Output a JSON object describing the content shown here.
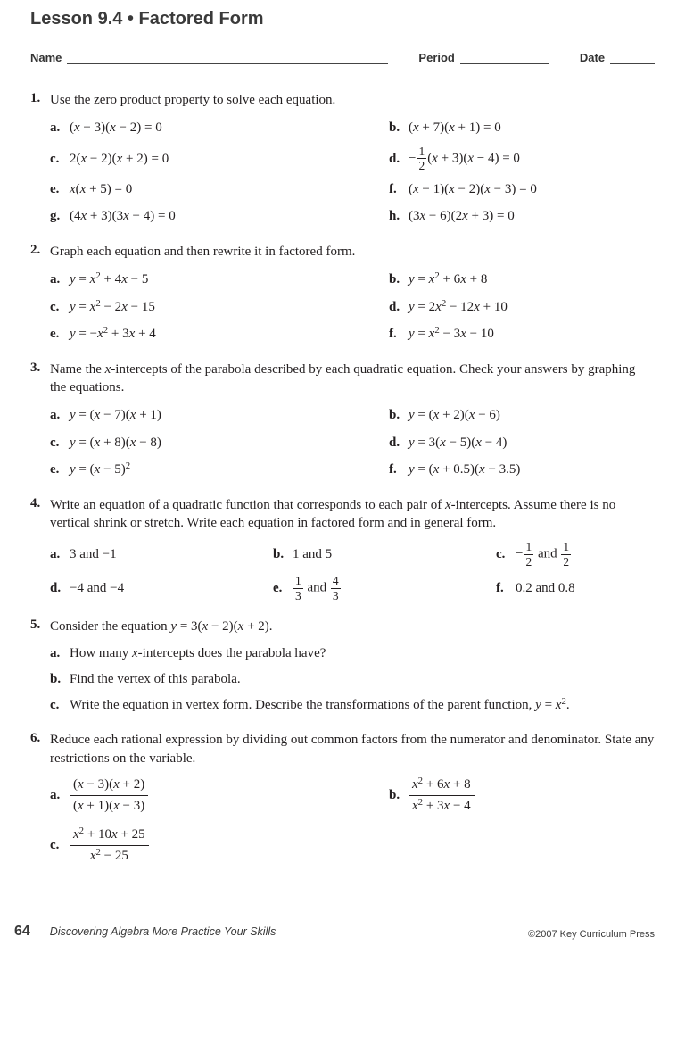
{
  "lesson_title": "Lesson 9.4 • Factored Form",
  "header": {
    "name": "Name",
    "period": "Period",
    "date": "Date"
  },
  "p1": {
    "num": "1.",
    "text": "Use the zero product property to solve each equation.",
    "a_l": "a.",
    "a": "(x − 3)(x − 2) = 0",
    "b_l": "b.",
    "b": "(x + 7)(x + 1) = 0",
    "c_l": "c.",
    "c": "2(x − 2)(x + 2) = 0",
    "d_l": "d.",
    "d_pre": "−",
    "d_num": "1",
    "d_den": "2",
    "d_post": "(x + 3)(x − 4) = 0",
    "e_l": "e.",
    "e": "x(x + 5) = 0",
    "f_l": "f.",
    "f": "(x − 1)(x − 2)(x − 3) = 0",
    "g_l": "g.",
    "g": "(4x + 3)(3x − 4) = 0",
    "h_l": "h.",
    "h": "(3x − 6)(2x + 3) = 0"
  },
  "p2": {
    "num": "2.",
    "text": "Graph each equation and then rewrite it in factored form.",
    "a_l": "a.",
    "a": "y = x² + 4x − 5",
    "b_l": "b.",
    "b": "y = x² + 6x + 8",
    "c_l": "c.",
    "c": "y = x² − 2x − 15",
    "d_l": "d.",
    "d": "y = 2x² − 12x + 10",
    "e_l": "e.",
    "e": "y = −x² + 3x + 4",
    "f_l": "f.",
    "f": "y = x² − 3x − 10"
  },
  "p3": {
    "num": "3.",
    "text": "Name the x-intercepts of the parabola described by each quadratic equation. Check your answers by graphing the equations.",
    "a_l": "a.",
    "a": "y = (x − 7)(x + 1)",
    "b_l": "b.",
    "b": "y = (x + 2)(x − 6)",
    "c_l": "c.",
    "c": "y = (x + 8)(x − 8)",
    "d_l": "d.",
    "d": "y = 3(x − 5)(x − 4)",
    "e_l": "e.",
    "e": "y = (x − 5)²",
    "f_l": "f.",
    "f": "y = (x + 0.5)(x − 3.5)"
  },
  "p4": {
    "num": "4.",
    "text": "Write an equation of a quadratic function that corresponds to each pair of x-intercepts. Assume there is no vertical shrink or stretch. Write each equation in factored form and in general form.",
    "a_l": "a.",
    "a": "3 and −1",
    "b_l": "b.",
    "b": "1 and 5",
    "c_l": "c.",
    "c_pre": "−",
    "c_n1": "1",
    "c_d1": "2",
    "c_mid": " and ",
    "c_n2": "1",
    "c_d2": "2",
    "d_l": "d.",
    "d": "−4 and −4",
    "e_l": "e.",
    "e_n1": "1",
    "e_d1": "3",
    "e_mid": " and ",
    "e_n2": "4",
    "e_d2": "3",
    "f_l": "f.",
    "f": "0.2 and 0.8"
  },
  "p5": {
    "num": "5.",
    "text": "Consider the equation y = 3(x − 2)(x + 2).",
    "a_l": "a.",
    "a": "How many x-intercepts does the parabola have?",
    "b_l": "b.",
    "b": "Find the vertex of this parabola.",
    "c_l": "c.",
    "c": "Write the equation in vertex form. Describe the transformations of the parent function, y = x²."
  },
  "p6": {
    "num": "6.",
    "text": "Reduce each rational expression by dividing out common factors from the numerator and denominator. State any restrictions on the variable.",
    "a_l": "a.",
    "a_num": "(x − 3)(x + 2)",
    "a_den": "(x + 1)(x − 3)",
    "b_l": "b.",
    "b_num": "x² + 6x + 8",
    "b_den": "x² + 3x − 4",
    "c_l": "c.",
    "c_num": "x² + 10x + 25",
    "c_den": "x² − 25"
  },
  "footer": {
    "page": "64",
    "book": "Discovering Algebra More Practice Your Skills",
    "copyright": "©2007 Key Curriculum Press"
  }
}
